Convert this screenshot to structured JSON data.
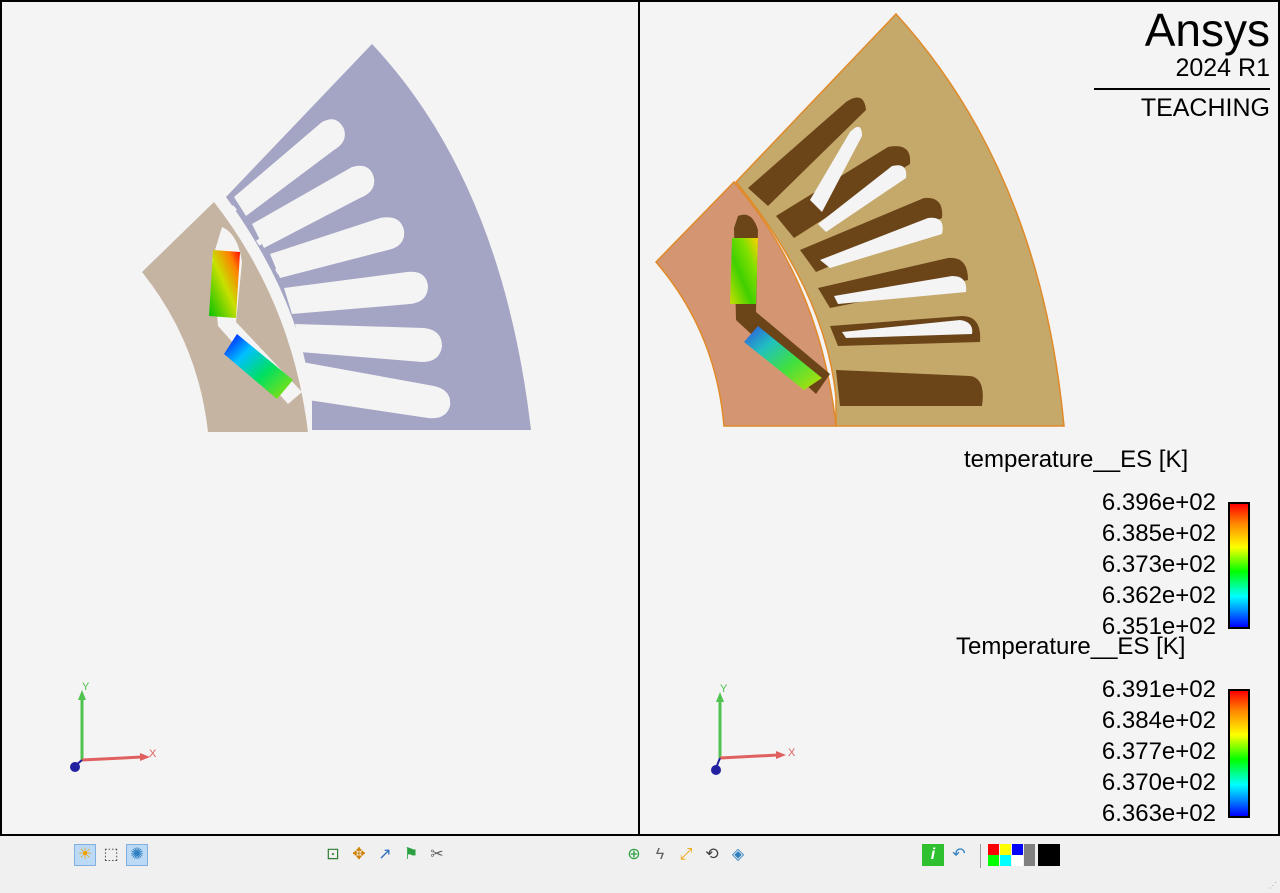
{
  "brand": {
    "product": "Ansys",
    "version": "2024 R1",
    "edition": "TEACHING"
  },
  "legends": [
    {
      "title": "temperature__ES [K]",
      "values": [
        "6.396e+02",
        "6.385e+02",
        "6.373e+02",
        "6.362e+02",
        "6.351e+02"
      ]
    },
    {
      "title": "Temperature__ES [K]",
      "values": [
        "6.391e+02",
        "6.384e+02",
        "6.377e+02",
        "6.370e+02",
        "6.363e+02"
      ]
    }
  ],
  "axes": {
    "x": "X",
    "y": "Y"
  },
  "colors": {
    "stator_left": "#a4a4c4",
    "rotor_left": "#c6b4a2",
    "stator_right": "#c4a96b",
    "rotor_right": "#d49572",
    "slot_shadow": "#6b4418",
    "outline": "#e08a2a",
    "viewport_bg": "#f4f4f4",
    "toolbar_active": "#bcd9f5"
  },
  "toolbar": {
    "groups": [
      [
        {
          "name": "lighting-icon",
          "glyph": "☀",
          "active": true
        },
        {
          "name": "wireframe-box-icon",
          "glyph": "⬚",
          "active": false
        },
        {
          "name": "render-effects-icon",
          "glyph": "✺",
          "active": true
        }
      ],
      [
        {
          "name": "zoom-box-icon",
          "glyph": "⊡",
          "active": false
        },
        {
          "name": "pan-icon",
          "glyph": "✥",
          "active": false
        },
        {
          "name": "arrow-select-icon",
          "glyph": "↗",
          "active": false
        },
        {
          "name": "flag-icon",
          "glyph": "⚑",
          "active": false
        },
        {
          "name": "tools-icon",
          "glyph": "✂",
          "active": false
        }
      ],
      [
        {
          "name": "zoom-fit-icon",
          "glyph": "⊕",
          "active": false
        },
        {
          "name": "lightning-icon",
          "glyph": "ϟ",
          "active": false
        },
        {
          "name": "move-node-icon",
          "glyph": "⤢",
          "active": false
        },
        {
          "name": "rotate-icon",
          "glyph": "⟲",
          "active": false
        },
        {
          "name": "view-orient-icon",
          "glyph": "◈",
          "active": false
        }
      ],
      [
        {
          "name": "info-icon",
          "glyph": "i",
          "active": false
        },
        {
          "name": "undo-icon",
          "glyph": "↶",
          "active": false
        }
      ]
    ],
    "palette": [
      "#ff0000",
      "#ffff00",
      "#0000ff",
      "#808080",
      "#00ff00",
      "#00ffff",
      "#ffffff",
      "#808080",
      "#000000"
    ]
  }
}
